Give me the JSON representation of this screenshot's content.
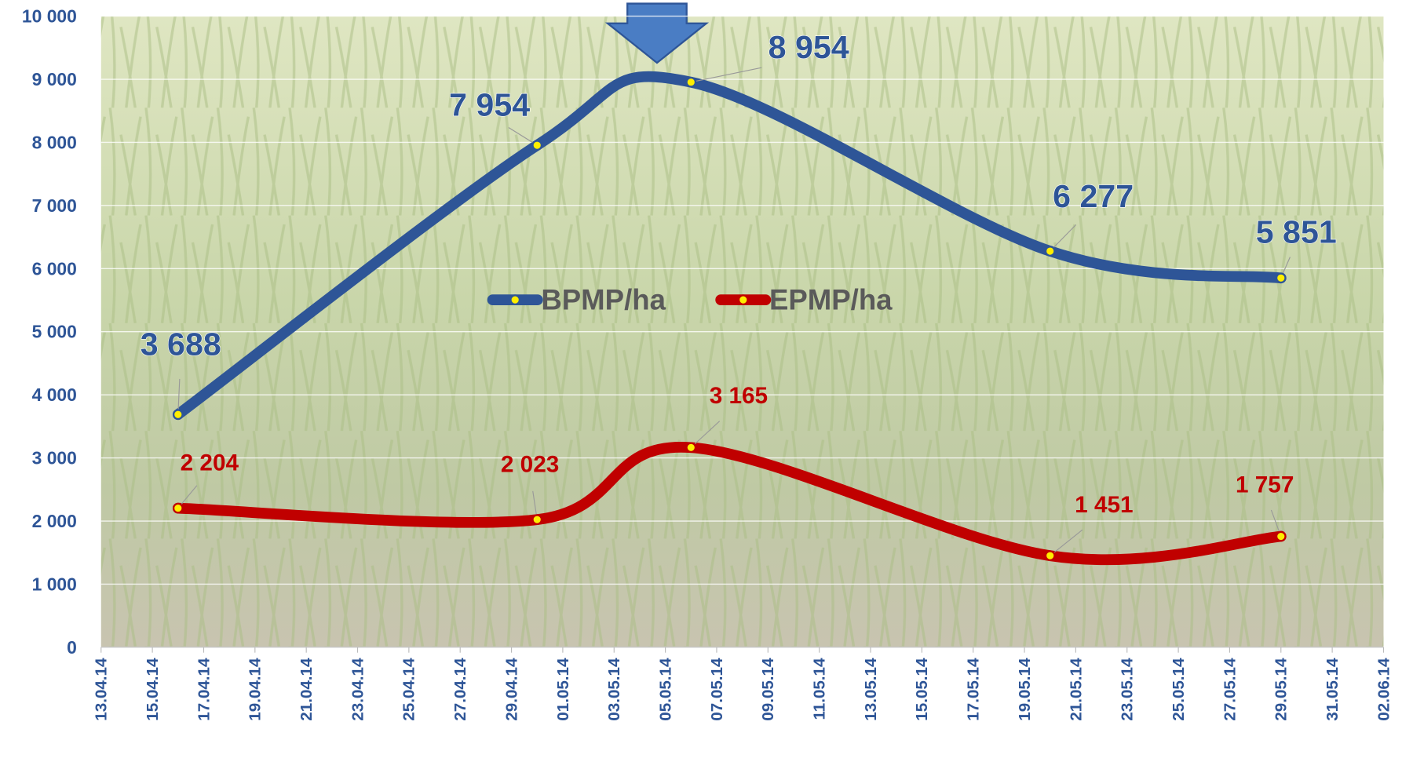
{
  "chart_data": {
    "type": "line",
    "x": [
      "16.04.14",
      "30.04.14",
      "06.05.14",
      "20.05.14",
      "29.05.14"
    ],
    "series": [
      {
        "name": "BPMP/ha",
        "color": "#2e5597",
        "values": [
          3688,
          7954,
          8954,
          6277,
          5851
        ],
        "value_labels": [
          "3 688",
          "7 954",
          "8 954",
          "6 277",
          "5 851"
        ]
      },
      {
        "name": "EPMP/ha",
        "color": "#c00000",
        "values": [
          2204,
          2023,
          3165,
          1451,
          1757
        ],
        "value_labels": [
          "2 204",
          "2 023",
          "3 165",
          "1 451",
          "1 757"
        ]
      }
    ],
    "xlim": [
      "13.04.14",
      "02.06.14"
    ],
    "xticks": [
      "13.04.14",
      "15.04.14",
      "17.04.14",
      "19.04.14",
      "21.04.14",
      "23.04.14",
      "25.04.14",
      "27.04.14",
      "29.04.14",
      "01.05.14",
      "03.05.14",
      "05.05.14",
      "07.05.14",
      "09.05.14",
      "11.05.14",
      "13.05.14",
      "15.05.14",
      "17.05.14",
      "19.05.14",
      "21.05.14",
      "23.05.14",
      "25.05.14",
      "27.05.14",
      "29.05.14",
      "31.05.14",
      "02.06.14"
    ],
    "ylim": [
      0,
      10000
    ],
    "yticks": [
      0,
      {
        "value": 1000,
        "label": "1 000"
      },
      {
        "value": 2000,
        "label": "2 000"
      },
      {
        "value": 3000,
        "label": "3 000"
      },
      {
        "value": 4000,
        "label": "4 000"
      },
      {
        "value": 5000,
        "label": "5 000"
      },
      {
        "value": 6000,
        "label": "6 000"
      },
      {
        "value": 7000,
        "label": "7 000"
      },
      {
        "value": 8000,
        "label": "8 000"
      },
      {
        "value": 9000,
        "label": "9 000"
      },
      {
        "value": 10000,
        "label": "10 000"
      }
    ],
    "grid": true
  }
}
